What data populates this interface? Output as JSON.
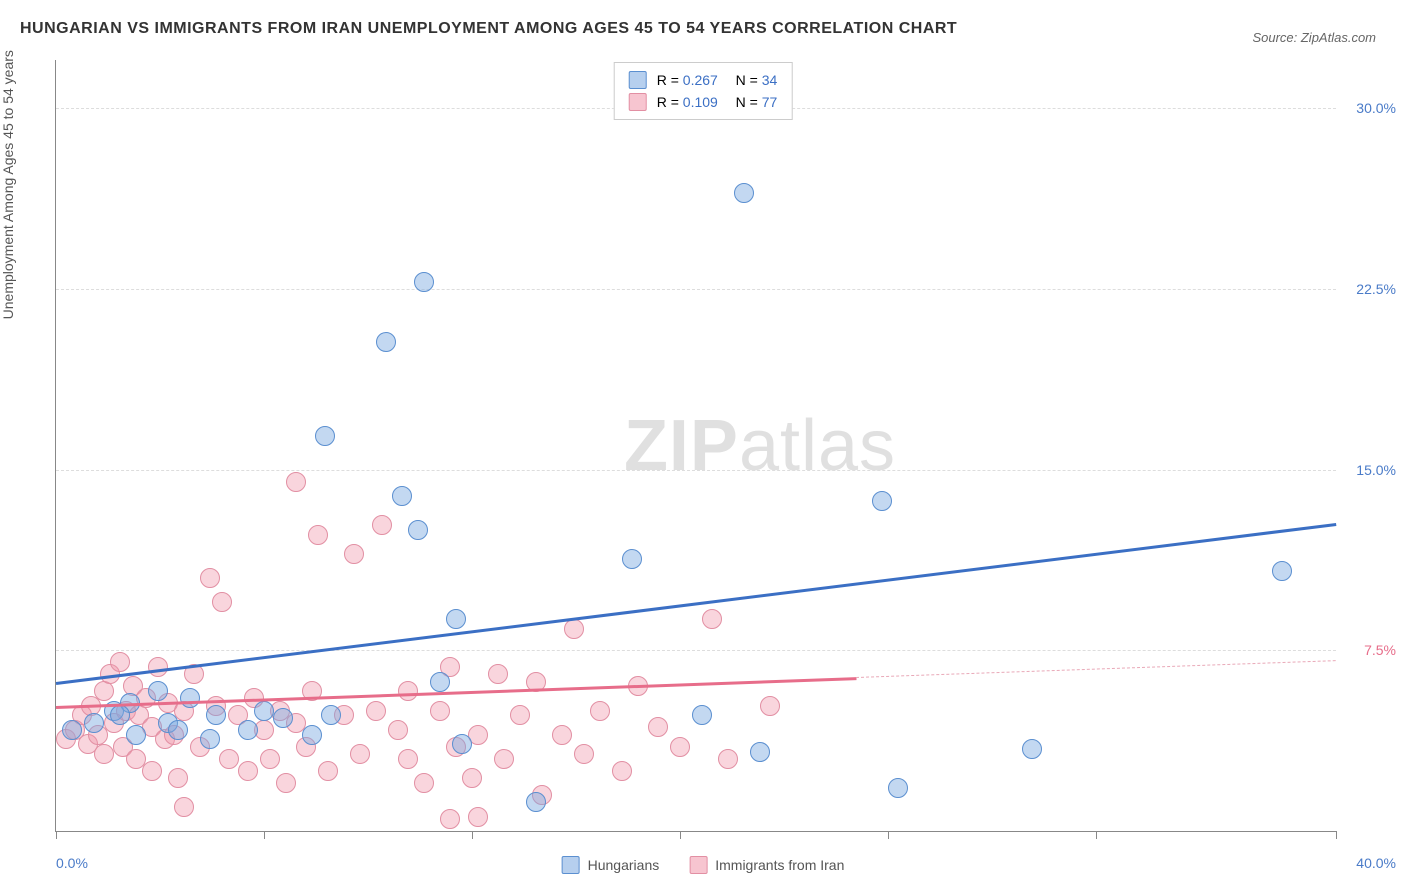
{
  "title": "HUNGARIAN VS IMMIGRANTS FROM IRAN UNEMPLOYMENT AMONG AGES 45 TO 54 YEARS CORRELATION CHART",
  "source": "Source: ZipAtlas.com",
  "ylabel": "Unemployment Among Ages 45 to 54 years",
  "watermark_bold": "ZIP",
  "watermark_rest": "atlas",
  "xlim": [
    0,
    40
  ],
  "ylim": [
    0,
    32
  ],
  "xtick_positions": [
    0,
    6.5,
    13,
    19.5,
    26,
    32.5,
    40
  ],
  "xtick_labels_first": "0.0%",
  "xtick_labels_last": "40.0%",
  "yticks": [
    {
      "pos": 7.5,
      "label": "7.5%",
      "color": "#e76d8a"
    },
    {
      "pos": 15.0,
      "label": "15.0%",
      "color": "#4a7bc8"
    },
    {
      "pos": 22.5,
      "label": "22.5%",
      "color": "#4a7bc8"
    },
    {
      "pos": 30.0,
      "label": "30.0%",
      "color": "#4a7bc8"
    }
  ],
  "stats": [
    {
      "swatch": "blue",
      "r": "0.267",
      "n": "34"
    },
    {
      "swatch": "pink",
      "r": "0.109",
      "n": "77"
    }
  ],
  "bottom_legend": [
    {
      "swatch": "blue",
      "label": "Hungarians"
    },
    {
      "swatch": "pink",
      "label": "Immigrants from Iran"
    }
  ],
  "point_radius": 10,
  "series_blue": {
    "color_fill": "rgba(122,168,224,0.45)",
    "color_stroke": "#5b8fd0",
    "trend": {
      "x1": 0,
      "y1": 6.2,
      "x2": 40,
      "y2": 12.8,
      "color": "#3b6fc4",
      "width": 2.5
    },
    "points": [
      [
        0.5,
        4.2
      ],
      [
        1.2,
        4.5
      ],
      [
        1.8,
        5.0
      ],
      [
        2.3,
        5.3
      ],
      [
        2.5,
        4.0
      ],
      [
        3.2,
        5.8
      ],
      [
        3.5,
        4.5
      ],
      [
        4.2,
        5.5
      ],
      [
        5.0,
        4.8
      ],
      [
        6.0,
        4.2
      ],
      [
        7.1,
        4.7
      ],
      [
        8.0,
        4.0
      ],
      [
        8.4,
        16.4
      ],
      [
        8.6,
        4.8
      ],
      [
        10.3,
        20.3
      ],
      [
        10.8,
        13.9
      ],
      [
        11.3,
        12.5
      ],
      [
        11.5,
        22.8
      ],
      [
        12.0,
        6.2
      ],
      [
        12.5,
        8.8
      ],
      [
        12.7,
        3.6
      ],
      [
        15.0,
        1.2
      ],
      [
        18.0,
        11.3
      ],
      [
        20.2,
        4.8
      ],
      [
        21.5,
        26.5
      ],
      [
        25.8,
        13.7
      ],
      [
        26.3,
        1.8
      ],
      [
        30.5,
        3.4
      ],
      [
        38.3,
        10.8
      ],
      [
        22.0,
        3.3
      ],
      [
        4.8,
        3.8
      ],
      [
        6.5,
        5.0
      ],
      [
        2.0,
        4.8
      ],
      [
        3.8,
        4.2
      ]
    ]
  },
  "series_pink": {
    "color_fill": "rgba(240,150,170,0.4)",
    "color_stroke": "#e28fa3",
    "trend_solid": {
      "x1": 0,
      "y1": 5.2,
      "x2": 25,
      "y2": 6.4,
      "color": "#e76d8a",
      "width": 2.5
    },
    "trend_dash": {
      "x1": 25,
      "y1": 6.4,
      "x2": 40,
      "y2": 7.1,
      "color": "#e9a9b8"
    },
    "points": [
      [
        0.3,
        3.8
      ],
      [
        0.6,
        4.2
      ],
      [
        0.8,
        4.8
      ],
      [
        1.0,
        3.6
      ],
      [
        1.1,
        5.2
      ],
      [
        1.3,
        4.0
      ],
      [
        1.5,
        5.8
      ],
      [
        1.5,
        3.2
      ],
      [
        1.7,
        6.5
      ],
      [
        1.8,
        4.5
      ],
      [
        2.0,
        7.0
      ],
      [
        2.1,
        3.5
      ],
      [
        2.2,
        5.0
      ],
      [
        2.4,
        6.0
      ],
      [
        2.5,
        3.0
      ],
      [
        2.6,
        4.8
      ],
      [
        2.8,
        5.5
      ],
      [
        3.0,
        4.3
      ],
      [
        3.0,
        2.5
      ],
      [
        3.2,
        6.8
      ],
      [
        3.4,
        3.8
      ],
      [
        3.5,
        5.3
      ],
      [
        3.7,
        4.0
      ],
      [
        3.8,
        2.2
      ],
      [
        4.0,
        5.0
      ],
      [
        4.0,
        1.0
      ],
      [
        4.3,
        6.5
      ],
      [
        4.5,
        3.5
      ],
      [
        4.8,
        10.5
      ],
      [
        5.0,
        5.2
      ],
      [
        5.2,
        9.5
      ],
      [
        5.4,
        3.0
      ],
      [
        5.7,
        4.8
      ],
      [
        6.0,
        2.5
      ],
      [
        6.2,
        5.5
      ],
      [
        6.5,
        4.2
      ],
      [
        6.7,
        3.0
      ],
      [
        7.0,
        5.0
      ],
      [
        7.2,
        2.0
      ],
      [
        7.5,
        4.5
      ],
      [
        7.5,
        14.5
      ],
      [
        7.8,
        3.5
      ],
      [
        8.0,
        5.8
      ],
      [
        8.2,
        12.3
      ],
      [
        8.5,
        2.5
      ],
      [
        9.0,
        4.8
      ],
      [
        9.3,
        11.5
      ],
      [
        9.5,
        3.2
      ],
      [
        10.0,
        5.0
      ],
      [
        10.2,
        12.7
      ],
      [
        10.7,
        4.2
      ],
      [
        11.0,
        3.0
      ],
      [
        11.5,
        2.0
      ],
      [
        12.0,
        5.0
      ],
      [
        12.3,
        6.8
      ],
      [
        12.3,
        0.5
      ],
      [
        12.5,
        3.5
      ],
      [
        13.2,
        4.0
      ],
      [
        13.2,
        0.6
      ],
      [
        13.8,
        6.5
      ],
      [
        14.0,
        3.0
      ],
      [
        14.5,
        4.8
      ],
      [
        15.0,
        6.2
      ],
      [
        15.2,
        1.5
      ],
      [
        15.8,
        4.0
      ],
      [
        16.2,
        8.4
      ],
      [
        16.5,
        3.2
      ],
      [
        17.0,
        5.0
      ],
      [
        17.7,
        2.5
      ],
      [
        18.2,
        6.0
      ],
      [
        18.8,
        4.3
      ],
      [
        19.5,
        3.5
      ],
      [
        20.5,
        8.8
      ],
      [
        21.0,
        3.0
      ],
      [
        22.3,
        5.2
      ],
      [
        13.0,
        2.2
      ],
      [
        11.0,
        5.8
      ]
    ]
  }
}
